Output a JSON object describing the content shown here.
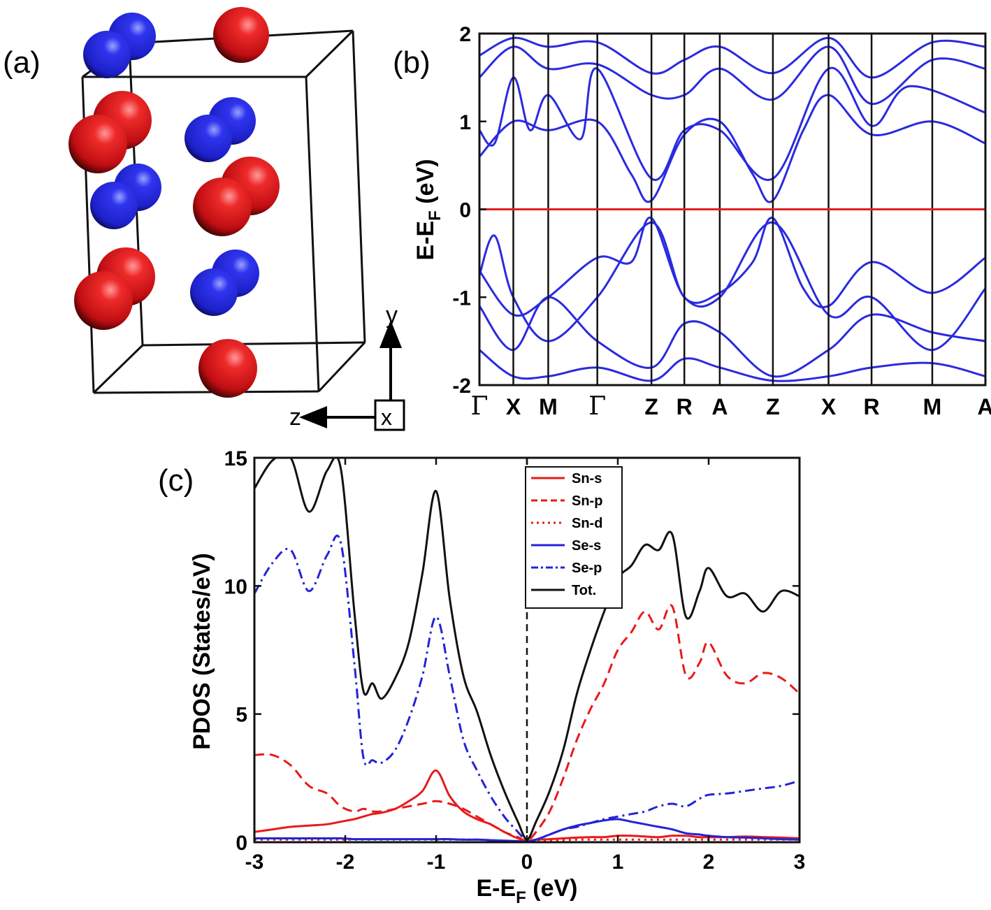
{
  "panels": {
    "a": "(a)",
    "b": "(b)",
    "c": "(c)"
  },
  "structure": {
    "axes": {
      "y": "y",
      "z": "z",
      "x": "x"
    },
    "colors": {
      "Sn": "#e0141a",
      "Se": "#2323d8"
    },
    "atoms": [
      {
        "el": "Se"
      },
      {
        "el": "Se"
      },
      {
        "el": "Sn"
      },
      {
        "el": "Sn"
      },
      {
        "el": "Sn"
      },
      {
        "el": "Se"
      },
      {
        "el": "Se"
      },
      {
        "el": "Se"
      },
      {
        "el": "Se"
      },
      {
        "el": "Sn"
      },
      {
        "el": "Sn"
      },
      {
        "el": "Sn"
      },
      {
        "el": "Sn"
      },
      {
        "el": "Se"
      },
      {
        "el": "Se"
      },
      {
        "el": "Sn"
      }
    ]
  },
  "chart_data": [
    {
      "type": "line",
      "panel": "b",
      "ylabel_main": "E-E",
      "ylabel_sub": "F",
      "ylabel_unit": " (eV)",
      "ylim": [
        -2,
        2
      ],
      "yticks": [
        "-2",
        "-1",
        "0",
        "1",
        "2"
      ],
      "kpoints": [
        "Γ",
        "X",
        "M",
        "Γ",
        "Z",
        "R",
        "A",
        "Z",
        "X",
        "R",
        "M",
        "A"
      ],
      "kpoint_positions": [
        0,
        0.67,
        1.36,
        2.33,
        3.4,
        4.05,
        4.75,
        5.8,
        6.9,
        7.75,
        8.95,
        10
      ],
      "fermi_level": 0,
      "band_color": "#2a2ae0",
      "fermi_color": "#e02020",
      "conduction_bands": [
        {
          "x": [
            0,
            0.67,
            1.36,
            2.33,
            3.0,
            3.4,
            4.05,
            4.75,
            5.4,
            5.8,
            6.4,
            6.9,
            7.75,
            8.95,
            10
          ],
          "y": [
            0.6,
            1.0,
            0.9,
            1.0,
            0.4,
            0.1,
            0.85,
            1.0,
            0.4,
            0.1,
            0.9,
            1.3,
            0.85,
            1.0,
            0.75
          ]
        },
        {
          "x": [
            0,
            0.3,
            0.67,
            1.0,
            1.36,
            2.0,
            2.33,
            3.4,
            4.05,
            4.75,
            5.8,
            6.9,
            7.75,
            8.5,
            10
          ],
          "y": [
            0.9,
            0.75,
            1.5,
            0.9,
            1.3,
            0.8,
            1.6,
            0.35,
            0.9,
            0.9,
            0.35,
            1.6,
            0.95,
            1.4,
            1.1
          ]
        },
        {
          "x": [
            0,
            0.67,
            1.36,
            2.33,
            3.4,
            4.05,
            4.75,
            5.8,
            6.9,
            7.75,
            8.95,
            10
          ],
          "y": [
            1.5,
            1.85,
            1.6,
            1.65,
            1.3,
            1.3,
            1.6,
            1.25,
            1.85,
            1.2,
            1.7,
            1.6
          ]
        },
        {
          "x": [
            0,
            0.67,
            1.36,
            2.33,
            3.4,
            4.05,
            4.75,
            5.8,
            6.9,
            7.75,
            8.95,
            10
          ],
          "y": [
            1.75,
            1.95,
            1.85,
            1.9,
            1.55,
            1.7,
            1.85,
            1.55,
            1.95,
            1.5,
            1.9,
            1.85
          ]
        }
      ],
      "valence_bands": [
        {
          "x": [
            0,
            0.67,
            1.36,
            2.33,
            3.0,
            3.4,
            4.05,
            4.75,
            5.4,
            5.8,
            6.4,
            6.9,
            7.75,
            8.95,
            10
          ],
          "y": [
            -0.7,
            -1.2,
            -1.0,
            -0.55,
            -0.6,
            -0.1,
            -1.0,
            -0.95,
            -0.6,
            -0.1,
            -0.9,
            -1.1,
            -0.6,
            -0.95,
            -0.55
          ]
        },
        {
          "x": [
            0,
            0.3,
            0.67,
            1.36,
            2.33,
            3.4,
            4.05,
            4.75,
            5.8,
            6.9,
            7.75,
            8.95,
            10
          ],
          "y": [
            -0.75,
            -0.3,
            -1.0,
            -1.5,
            -1.0,
            -0.15,
            -1.0,
            -1.0,
            -0.15,
            -1.2,
            -1.0,
            -1.6,
            -0.9
          ]
        },
        {
          "x": [
            0,
            0.67,
            1.36,
            2.33,
            3.4,
            4.05,
            4.75,
            5.8,
            6.9,
            7.75,
            8.95,
            10
          ],
          "y": [
            -1.1,
            -1.6,
            -1.0,
            -1.5,
            -1.8,
            -1.3,
            -1.4,
            -1.9,
            -1.6,
            -1.2,
            -1.4,
            -1.5
          ]
        },
        {
          "x": [
            0,
            0.67,
            1.36,
            2.33,
            3.4,
            4.05,
            4.75,
            5.8,
            6.9,
            7.75,
            8.95,
            10
          ],
          "y": [
            -1.6,
            -1.9,
            -1.9,
            -1.8,
            -1.95,
            -1.7,
            -1.8,
            -1.95,
            -1.9,
            -1.8,
            -1.75,
            -1.9
          ]
        }
      ]
    },
    {
      "type": "line",
      "panel": "c",
      "xlabel_main": "E-E",
      "xlabel_sub": "F",
      "xlabel_unit": " (eV)",
      "ylabel": "PDOS (States/eV)",
      "xlim": [
        -3,
        3
      ],
      "ylim": [
        0,
        15
      ],
      "xticks": [
        "-3",
        "-2",
        "-1",
        "0",
        "1",
        "2",
        "3"
      ],
      "yticks": [
        "0",
        "5",
        "10",
        "15"
      ],
      "fermi_level": 0,
      "legend_position": "top-right",
      "x": [
        -3.0,
        -2.8,
        -2.6,
        -2.4,
        -2.2,
        -2.05,
        -1.9,
        -1.8,
        -1.7,
        -1.6,
        -1.45,
        -1.3,
        -1.15,
        -1.0,
        -0.85,
        -0.7,
        -0.55,
        -0.4,
        -0.25,
        -0.1,
        0.0,
        0.1,
        0.25,
        0.4,
        0.55,
        0.7,
        0.85,
        1.0,
        1.15,
        1.3,
        1.45,
        1.6,
        1.75,
        1.9,
        2.0,
        2.2,
        2.4,
        2.6,
        2.8,
        3.0
      ],
      "series": [
        {
          "name": "Sn-s",
          "color": "#e81a1a",
          "dash": "solid",
          "values": [
            0.4,
            0.5,
            0.6,
            0.65,
            0.7,
            0.8,
            0.9,
            1.0,
            1.1,
            1.15,
            1.3,
            1.6,
            2.0,
            2.8,
            1.8,
            1.2,
            0.9,
            0.7,
            0.4,
            0.15,
            0.05,
            0.1,
            0.12,
            0.15,
            0.18,
            0.2,
            0.2,
            0.25,
            0.25,
            0.22,
            0.2,
            0.25,
            0.25,
            0.2,
            0.2,
            0.2,
            0.22,
            0.2,
            0.18,
            0.15
          ]
        },
        {
          "name": "Sn-p",
          "color": "#e81a1a",
          "dash": "dashed",
          "values": [
            3.4,
            3.4,
            3.0,
            2.2,
            1.9,
            1.4,
            1.2,
            1.3,
            1.2,
            1.2,
            1.3,
            1.4,
            1.5,
            1.6,
            1.5,
            1.3,
            1.0,
            0.7,
            0.4,
            0.2,
            0.05,
            0.4,
            1.2,
            2.5,
            4.0,
            5.2,
            6.2,
            7.5,
            8.2,
            9.0,
            8.3,
            9.2,
            6.5,
            7.0,
            7.8,
            6.5,
            6.2,
            6.6,
            6.4,
            5.8
          ]
        },
        {
          "name": "Sn-d",
          "color": "#e81a1a",
          "dash": "dotted",
          "values": [
            0.1,
            0.1,
            0.1,
            0.1,
            0.1,
            0.1,
            0.1,
            0.1,
            0.1,
            0.1,
            0.1,
            0.1,
            0.1,
            0.1,
            0.1,
            0.1,
            0.1,
            0.08,
            0.06,
            0.04,
            0.02,
            0.04,
            0.06,
            0.08,
            0.1,
            0.1,
            0.1,
            0.1,
            0.1,
            0.1,
            0.1,
            0.1,
            0.1,
            0.1,
            0.1,
            0.1,
            0.1,
            0.1,
            0.1,
            0.1
          ]
        },
        {
          "name": "Se-s",
          "color": "#2323d8",
          "dash": "solid",
          "values": [
            0.15,
            0.15,
            0.15,
            0.15,
            0.15,
            0.15,
            0.12,
            0.12,
            0.12,
            0.12,
            0.12,
            0.12,
            0.12,
            0.12,
            0.12,
            0.1,
            0.1,
            0.08,
            0.06,
            0.04,
            0.02,
            0.1,
            0.3,
            0.5,
            0.65,
            0.75,
            0.85,
            0.9,
            0.8,
            0.7,
            0.6,
            0.5,
            0.35,
            0.3,
            0.25,
            0.2,
            0.18,
            0.15,
            0.12,
            0.1
          ]
        },
        {
          "name": "Se-p",
          "color": "#2323d8",
          "dash": "dashdot",
          "values": [
            9.7,
            10.9,
            11.4,
            9.8,
            11.2,
            11.7,
            7.0,
            3.3,
            3.2,
            3.1,
            3.6,
            4.8,
            6.5,
            8.8,
            6.5,
            4.0,
            2.8,
            1.8,
            1.0,
            0.4,
            0.05,
            0.1,
            0.3,
            0.5,
            0.6,
            0.75,
            0.9,
            1.0,
            1.1,
            1.2,
            1.4,
            1.5,
            1.4,
            1.7,
            1.85,
            1.9,
            2.0,
            2.1,
            2.2,
            2.4
          ]
        },
        {
          "name": "Tot.",
          "color": "#111111",
          "dash": "solid",
          "values": [
            13.8,
            14.9,
            15.0,
            12.9,
            14.5,
            14.6,
            9.0,
            5.9,
            6.2,
            5.6,
            6.4,
            7.8,
            10.5,
            13.7,
            9.5,
            6.5,
            5.1,
            3.4,
            2.0,
            0.8,
            0.1,
            0.8,
            2.0,
            3.6,
            5.8,
            7.5,
            9.0,
            10.3,
            10.8,
            11.6,
            11.4,
            12.0,
            8.8,
            9.8,
            10.7,
            9.6,
            9.7,
            9.0,
            9.8,
            9.6
          ]
        }
      ]
    }
  ]
}
